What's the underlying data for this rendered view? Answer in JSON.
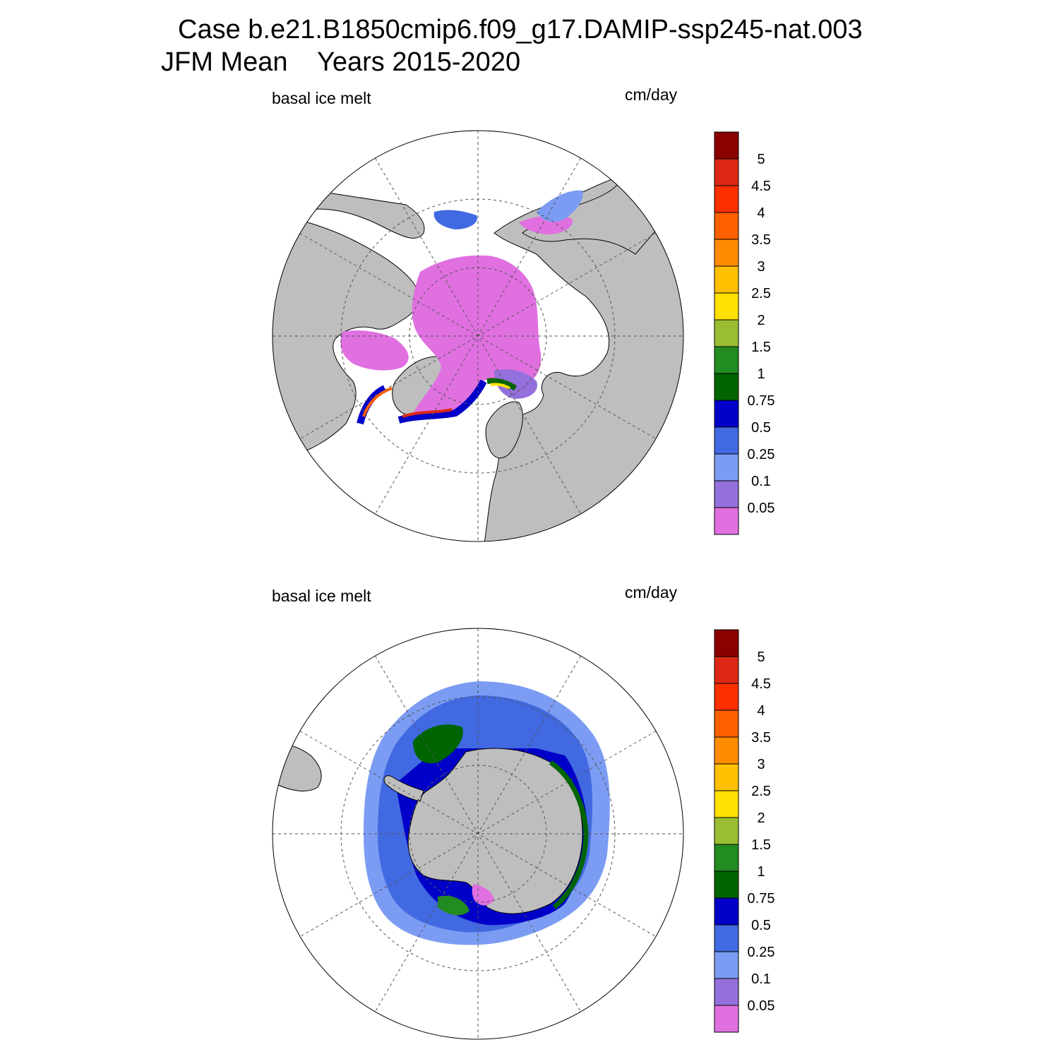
{
  "title": {
    "line1": "Case b.e21.B1850cmip6.f09_g17.DAMIP-ssp245-nat.003",
    "line2": "JFM Mean    Years 2015-2020"
  },
  "panels": [
    {
      "id": "north",
      "left_label": "basal ice melt",
      "right_label": "cm/day",
      "hemisphere": "Arctic (North polar stereographic)"
    },
    {
      "id": "south",
      "left_label": "basal ice melt",
      "right_label": "cm/day",
      "hemisphere": "Antarctic (South polar stereographic)"
    }
  ],
  "colorbar": {
    "levels": [
      "0.05",
      "0.1",
      "0.25",
      "0.5",
      "0.75",
      "1",
      "1.5",
      "2",
      "2.5",
      "3",
      "3.5",
      "4",
      "4.5",
      "5"
    ],
    "colors": [
      "#e070e0",
      "#9370db",
      "#7b9cf2",
      "#4169e1",
      "#0000c8",
      "#006400",
      "#228b22",
      "#9abd32",
      "#ffe000",
      "#ffc000",
      "#ff8c00",
      "#ff6000",
      "#ff3000",
      "#dc2814",
      "#8b0000"
    ]
  },
  "map_colors": {
    "land": "#bebebe",
    "ocean_no_ice": "#ffffff",
    "coast": "#000000"
  }
}
